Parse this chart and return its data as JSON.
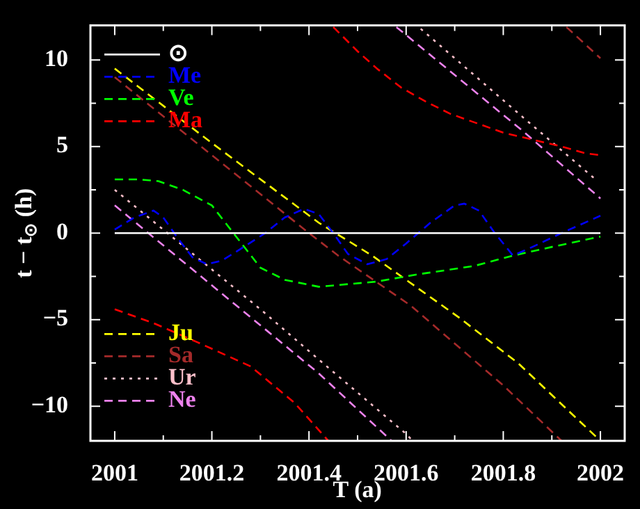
{
  "chart_data": {
    "type": "line",
    "xlabel": "T (a)",
    "ylabel": "t − t$_{⊙}$ (h)",
    "xlim": [
      2000.95,
      2002.05
    ],
    "ylim": [
      -12,
      12
    ],
    "xticks": [
      2001,
      {
        "value": 2001.1,
        "label": null
      },
      2001.2,
      {
        "value": 2001.3,
        "label": null
      },
      2001.4,
      {
        "value": 2001.5,
        "label": null
      },
      2001.6,
      {
        "value": 2001.7,
        "label": null
      },
      2001.8,
      {
        "value": 2001.9,
        "label": null
      },
      2002
    ],
    "yticks": [
      -10,
      {
        "value": -7.5,
        "label": null
      },
      -5,
      {
        "value": -2.5,
        "label": null
      },
      0,
      {
        "value": 2.5,
        "label": null
      },
      5,
      {
        "value": 7.5,
        "label": null
      },
      10
    ],
    "grid": false,
    "legend": "left",
    "marker": "none",
    "series": [
      {
        "name": "⊙",
        "color": "#ffffff",
        "line_style": "solid",
        "x": [
          2001,
          2002
        ],
        "values": [
          0,
          0
        ]
      },
      {
        "name": "Me",
        "color": "#0000ff",
        "line_style": "dashed",
        "x": [
          2001,
          2001.04,
          2001.08,
          2001.1,
          2001.13,
          2001.16,
          2001.19,
          2001.22,
          2001.26,
          2001.31,
          2001.35,
          2001.39,
          2001.42,
          2001.45,
          2001.48,
          2001.52,
          2001.56,
          2001.6,
          2001.65,
          2001.7,
          2001.72,
          2001.75,
          2001.78,
          2001.82,
          2001.86,
          2001.92,
          2001.96,
          2002
        ],
        "values": [
          0.2,
          0.9,
          1.3,
          0.9,
          -0.3,
          -1.4,
          -1.8,
          -1.6,
          -0.9,
          0,
          0.9,
          1.4,
          1.1,
          0,
          -1.2,
          -1.8,
          -1.5,
          -0.6,
          0.6,
          1.6,
          1.7,
          1.3,
          0.1,
          -1.3,
          -0.8,
          0,
          0.5,
          1
        ]
      },
      {
        "name": "Ve",
        "color": "#00ff00",
        "line_style": "dashed",
        "x": [
          2001,
          2001.05,
          2001.09,
          2001.14,
          2001.2,
          2001.25,
          2001.3,
          2001.35,
          2001.42,
          2001.54,
          2001.62,
          2001.74,
          2001.82,
          2001.9,
          2002
        ],
        "values": [
          3.1,
          3.1,
          3.0,
          2.5,
          1.6,
          -0.2,
          -2.0,
          -2.7,
          -3.1,
          -2.8,
          -2.4,
          -1.9,
          -1.3,
          -0.8,
          -0.2
        ]
      },
      {
        "name": "Ma",
        "color": "#ff0000",
        "line_style": "dashed",
        "x": [
          2001,
          2001.08,
          2001.17,
          2001.28,
          2001.37,
          2001.44,
          null,
          2001.45,
          2001.5,
          2001.54,
          2001.59,
          2001.64,
          2001.69,
          2001.75,
          2001.8,
          2001.86,
          2001.92,
          2001.97,
          2002
        ],
        "values": [
          -4.4,
          -5.2,
          -6.3,
          -7.7,
          -9.8,
          -12,
          null,
          11.9,
          10.5,
          9.5,
          8.4,
          7.6,
          6.9,
          6.3,
          5.8,
          5.4,
          5.0,
          4.6,
          4.5
        ]
      },
      {
        "name": "Ju",
        "color": "#ffff00",
        "line_style": "dashed",
        "x": [
          2001,
          2001.2,
          2001.42,
          2001.53,
          2001.71,
          2001.83,
          2002
        ],
        "values": [
          9.5,
          5.2,
          0.6,
          -1.3,
          -4.9,
          -7.5,
          -12
        ]
      },
      {
        "name": "Sa",
        "color": "#a52a2a",
        "line_style": "dashed",
        "x": [
          2001,
          2001.2,
          2001.4,
          2001.46,
          2001.61,
          2001.8,
          2001.92,
          null,
          2001.93,
          2002
        ],
        "values": [
          9.0,
          4.5,
          0,
          -1.3,
          -4.2,
          -8.8,
          -12,
          null,
          11.9,
          10.1
        ]
      },
      {
        "name": "Ur",
        "color": "#ffc0cb",
        "line_style": "dotted",
        "x": [
          2001,
          2001.3,
          2001.42,
          2001.6,
          2001.61,
          null,
          2001.63,
          2001.84,
          2001.99
        ],
        "values": [
          2.5,
          -4.4,
          -7.3,
          -11.6,
          -11.9,
          null,
          11.8,
          6.7,
          3.1
        ]
      },
      {
        "name": "Ne",
        "color": "#ee82ee",
        "line_style": "dashed",
        "x": [
          2001,
          2001.42,
          2001.57,
          null,
          2001.58,
          2001.84,
          2002
        ],
        "values": [
          1.6,
          -8.1,
          -12,
          null,
          11.9,
          5.9,
          2
        ]
      }
    ]
  }
}
